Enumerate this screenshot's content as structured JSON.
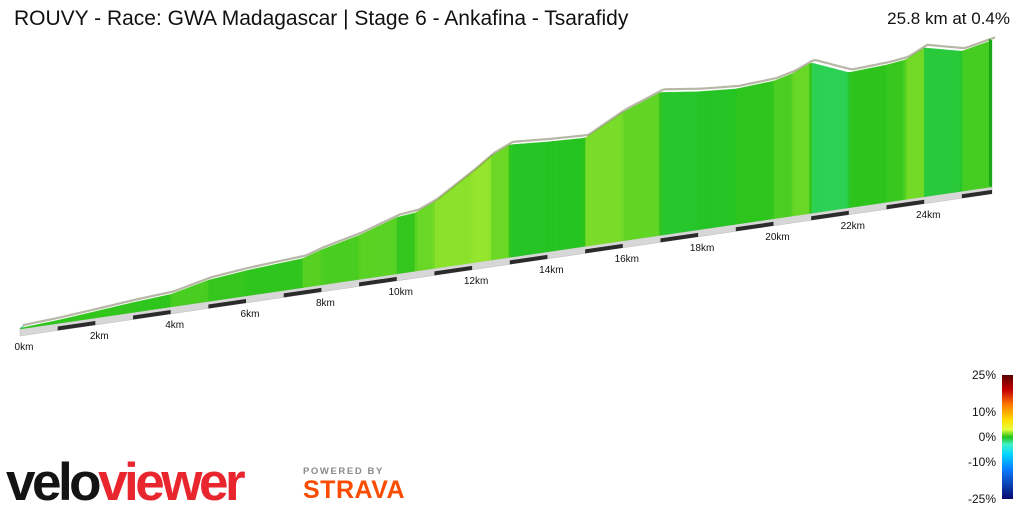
{
  "header": {
    "title": "ROUVY - Race: GWA Madagascar | Stage 6 - Ankafina - Tsarafidy",
    "summary": "25.8 km at 0.4%"
  },
  "chart_data": {
    "type": "area",
    "title": "ROUVY - Race: GWA Madagascar | Stage 6 - Ankafina - Tsarafidy",
    "x_unit": "km",
    "x_ticks": [
      0,
      2,
      4,
      6,
      8,
      10,
      12,
      14,
      16,
      18,
      20,
      22,
      24
    ],
    "x_tick_labels": [
      "0km",
      "2km",
      "4km",
      "6km",
      "8km",
      "10km",
      "12km",
      "14km",
      "16km",
      "18km",
      "20km",
      "22km",
      "24km"
    ],
    "total_distance_km": 25.8,
    "average_gradient_pct": 0.4,
    "elevation_profile_relative": {
      "distance_km": [
        0,
        1,
        2,
        3,
        4,
        5,
        6,
        7,
        7.5,
        8,
        9,
        10,
        10.5,
        11,
        12,
        12.5,
        13,
        14,
        15,
        16,
        17,
        18,
        19,
        20,
        20.5,
        21,
        22,
        23,
        23.5,
        24,
        25,
        25.8
      ],
      "elevation": [
        0.6,
        2.3,
        4.7,
        7.2,
        9.1,
        15.4,
        18.3,
        20.2,
        21.1,
        25.4,
        31.9,
        40.9,
        42.3,
        48.2,
        65.7,
        75.4,
        81.6,
        79.7,
        78.5,
        93.1,
        103.6,
        100.1,
        98.1,
        99.8,
        103.2,
        109.1,
        98.0,
        99.5,
        101.2,
        107.9,
        101.5,
        106.1
      ]
    },
    "legend": {
      "title": "",
      "tick_labels": [
        "25%",
        "10%",
        "0%",
        "-10%",
        "-25%"
      ],
      "tick_values": [
        25,
        10,
        0,
        -10,
        -25
      ],
      "colors_top_to_bottom": [
        "#5a0000",
        "#c40000",
        "#ff7a00",
        "#ffdc00",
        "#e7ff3a",
        "#23c11a",
        "#3ff2c8",
        "#00d5ff",
        "#0a7dff",
        "#08086e"
      ],
      "placement": "bottom-right"
    }
  },
  "branding": {
    "logo_text": "veloviewer",
    "powered_by": "POWERED BY",
    "strava": "STRAVA",
    "strava_color": "#fc4c02"
  }
}
